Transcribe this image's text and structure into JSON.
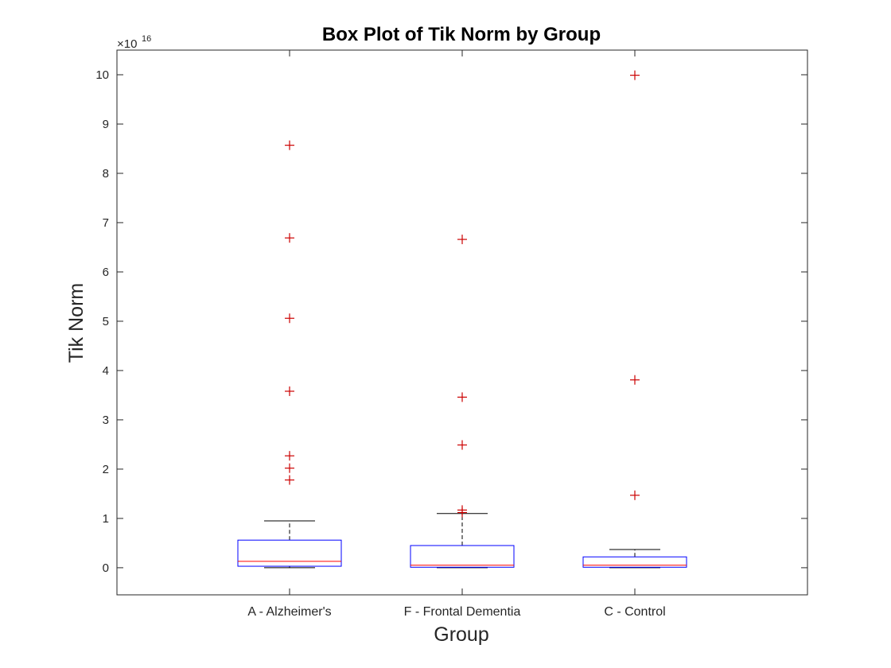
{
  "chart_data": {
    "type": "box",
    "title": "Box Plot of Tik Norm by Group",
    "xlabel": "Group",
    "ylabel": "Tik Norm",
    "y_exponent_base": "×10",
    "y_exponent_power": "16",
    "ylim": [
      -0.55,
      10.5
    ],
    "yticks": [
      0,
      1,
      2,
      3,
      4,
      5,
      6,
      7,
      8,
      9,
      10
    ],
    "categories": [
      "A - Alzheimer's",
      "F - Frontal Dementia",
      "C - Control"
    ],
    "series": [
      {
        "lower_whisker": 0.0,
        "q1": 0.03,
        "median": 0.13,
        "q3": 0.56,
        "upper_whisker": 0.95,
        "outliers": [
          8.57,
          6.69,
          5.06,
          3.58,
          2.27,
          2.02,
          1.78
        ]
      },
      {
        "lower_whisker": 0.0,
        "q1": 0.01,
        "median": 0.05,
        "q3": 0.45,
        "upper_whisker": 1.1,
        "outliers": [
          6.66,
          3.46,
          2.49,
          1.17,
          1.12
        ]
      },
      {
        "lower_whisker": 0.0,
        "q1": 0.01,
        "median": 0.05,
        "q3": 0.22,
        "upper_whisker": 0.37,
        "outliers": [
          9.99,
          3.81,
          1.47
        ]
      }
    ],
    "grid": false,
    "colors": {
      "box": "#0000ff",
      "median": "#ff0000",
      "whisker": "#000000",
      "outlier": "#cc0000",
      "axes": "#262626"
    }
  }
}
